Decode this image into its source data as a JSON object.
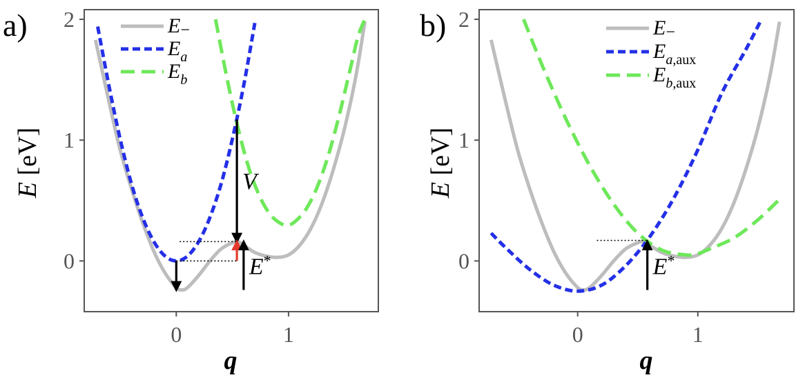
{
  "chart_data": [
    {
      "panel_label": "a)",
      "type": "line",
      "xlabel": "q",
      "ylabel": "E [eV]",
      "ylabel_italic": "E",
      "ylabel_unit": " [eV]",
      "xlim": [
        -0.82,
        1.8
      ],
      "ylim": [
        -0.42,
        2.08
      ],
      "xticks": [
        0,
        1
      ],
      "xtick_labels": [
        "0",
        "1"
      ],
      "yticks": [
        0,
        1,
        2
      ],
      "ytick_labels": [
        "0",
        "1",
        "2"
      ],
      "legend_position": "top-left",
      "series": [
        {
          "name": "E_−",
          "main": "E",
          "sub": "−",
          "color": "#bdbdbd",
          "dash": "solid",
          "x": [
            -0.72,
            -0.6,
            -0.5,
            -0.4,
            -0.3,
            -0.2,
            -0.1,
            0,
            0.05,
            0.1,
            0.2,
            0.3,
            0.4,
            0.5,
            0.55,
            0.6,
            0.7,
            0.8,
            0.9,
            1.0,
            1.1,
            1.2,
            1.3,
            1.4,
            1.5,
            1.6,
            1.68
          ],
          "y": [
            1.83,
            1.32,
            0.92,
            0.6,
            0.32,
            0.08,
            -0.1,
            -0.22,
            -0.24,
            -0.22,
            -0.12,
            0.0,
            0.1,
            0.15,
            0.16,
            0.13,
            0.07,
            0.04,
            0.03,
            0.05,
            0.13,
            0.27,
            0.48,
            0.76,
            1.1,
            1.53,
            1.98
          ]
        },
        {
          "name": "E_a",
          "main": "E",
          "sub": "a",
          "color": "#2430e6",
          "dash": "short",
          "x": [
            -0.7,
            -0.6,
            -0.5,
            -0.4,
            -0.3,
            -0.2,
            -0.1,
            0,
            0.1,
            0.2,
            0.3,
            0.4,
            0.5,
            0.6,
            0.7
          ],
          "y": [
            1.94,
            1.45,
            1.01,
            0.64,
            0.36,
            0.16,
            0.04,
            0.0,
            0.04,
            0.16,
            0.36,
            0.64,
            1.01,
            1.45,
            1.97
          ]
        },
        {
          "name": "E_b",
          "main": "E",
          "sub": "b",
          "color": "#6ee85a",
          "dash": "long",
          "x": [
            0.35,
            0.45,
            0.55,
            0.65,
            0.75,
            0.85,
            0.95,
            1.0,
            1.05,
            1.15,
            1.25,
            1.35,
            1.45,
            1.55,
            1.62,
            1.68
          ],
          "y": [
            2.0,
            1.52,
            1.1,
            0.76,
            0.52,
            0.37,
            0.3,
            0.3,
            0.32,
            0.42,
            0.6,
            0.86,
            1.2,
            1.59,
            1.86,
            2.0
          ]
        }
      ],
      "annotations": [
        {
          "type": "arrow",
          "label": "V",
          "x": 0.54,
          "from": 1.17,
          "to": 0.16,
          "color": "#000000"
        },
        {
          "type": "arrow",
          "label": "",
          "x": 0.0,
          "from": 0.0,
          "to": -0.24,
          "color": "#000000"
        },
        {
          "type": "arrow",
          "label": "",
          "x": 0.54,
          "from": 0.0,
          "to": 0.16,
          "color": "#e33b2d"
        },
        {
          "type": "arrow",
          "label": "E*",
          "x": 0.6,
          "from": -0.24,
          "to": 0.16,
          "color": "#000000"
        },
        {
          "type": "hline_dotted",
          "y": 0.16,
          "x_from": 0.03,
          "x_to": 0.55
        },
        {
          "type": "hline_dotted",
          "y": 0.0,
          "x_from": 0.0,
          "x_to": 0.55
        }
      ]
    },
    {
      "panel_label": "b)",
      "type": "line",
      "xlabel": "q",
      "ylabel": "E [eV]",
      "ylabel_italic": "E",
      "ylabel_unit": " [eV]",
      "xlim": [
        -0.82,
        1.8
      ],
      "ylim": [
        -0.42,
        2.08
      ],
      "xticks": [
        0,
        1
      ],
      "xtick_labels": [
        "0",
        "1"
      ],
      "yticks": [
        0,
        1,
        2
      ],
      "ytick_labels": [
        "0",
        "1",
        "2"
      ],
      "legend_position": "top-right",
      "series": [
        {
          "name": "E_−",
          "main": "E",
          "sub": "−",
          "color": "#bdbdbd",
          "dash": "solid",
          "x": [
            -0.72,
            -0.6,
            -0.5,
            -0.4,
            -0.3,
            -0.2,
            -0.1,
            0,
            0.05,
            0.1,
            0.2,
            0.3,
            0.4,
            0.5,
            0.55,
            0.6,
            0.7,
            0.8,
            0.9,
            1.0,
            1.1,
            1.2,
            1.3,
            1.4,
            1.5,
            1.6,
            1.68
          ],
          "y": [
            1.83,
            1.32,
            0.92,
            0.6,
            0.32,
            0.08,
            -0.1,
            -0.22,
            -0.24,
            -0.22,
            -0.12,
            0.0,
            0.1,
            0.15,
            0.16,
            0.13,
            0.07,
            0.04,
            0.03,
            0.05,
            0.13,
            0.27,
            0.48,
            0.76,
            1.1,
            1.53,
            1.98
          ]
        },
        {
          "name": "E_a,aux",
          "main": "E",
          "sub": "a,aux",
          "color": "#2430e6",
          "dash": "short",
          "x": [
            -0.72,
            -0.6,
            -0.4,
            -0.2,
            0,
            0.2,
            0.4,
            0.6,
            0.8,
            1.0,
            1.2,
            1.4,
            1.53
          ],
          "y": [
            0.23,
            0.11,
            -0.07,
            -0.2,
            -0.25,
            -0.2,
            -0.04,
            0.2,
            0.52,
            0.92,
            1.39,
            1.75,
            2.0
          ]
        },
        {
          "name": "E_b,aux",
          "main": "E",
          "sub": "b,aux",
          "color": "#6ee85a",
          "dash": "long",
          "x": [
            -0.45,
            -0.3,
            -0.1,
            0.1,
            0.3,
            0.5,
            0.7,
            0.9,
            1.0,
            1.1,
            1.3,
            1.5,
            1.68
          ],
          "y": [
            2.0,
            1.63,
            1.18,
            0.79,
            0.47,
            0.23,
            0.09,
            0.05,
            0.06,
            0.1,
            0.19,
            0.34,
            0.51
          ]
        }
      ],
      "annotations": [
        {
          "type": "arrow",
          "label": "E*",
          "x": 0.58,
          "from": -0.24,
          "to": 0.16,
          "color": "#000000"
        },
        {
          "type": "hline_dotted",
          "y": 0.17,
          "x_from": 0.16,
          "x_to": 0.58
        }
      ]
    }
  ]
}
